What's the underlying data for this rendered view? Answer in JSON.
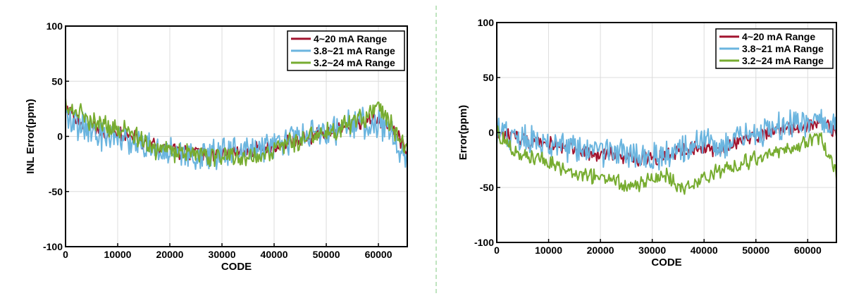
{
  "colors": {
    "series": [
      "#A2142F",
      "#6BB5DF",
      "#77AC30"
    ],
    "grid": "#dcdcdc",
    "divider": "#bfe4bf"
  },
  "chart_data": [
    {
      "type": "line",
      "title": "",
      "xlabel": "CODE",
      "ylabel": "INL Error(ppm)",
      "xlim": [
        0,
        65535
      ],
      "ylim": [
        -100,
        100
      ],
      "xticks": [
        0,
        10000,
        20000,
        30000,
        40000,
        50000,
        60000
      ],
      "yticks": [
        -100,
        -50,
        0,
        50,
        100
      ],
      "grid": true,
      "legend_position": "top-right",
      "series": [
        {
          "name": "4~20 mA Range",
          "x": [
            0,
            2500,
            5000,
            7500,
            10000,
            12500,
            15000,
            17500,
            20000,
            22500,
            25000,
            27500,
            30000,
            32500,
            35000,
            37500,
            40000,
            42500,
            45000,
            47500,
            50000,
            52500,
            55000,
            57500,
            60000,
            62500,
            65535
          ],
          "y": [
            26,
            13,
            8,
            4,
            2,
            0,
            -6,
            -10,
            -12,
            -14,
            -16,
            -17,
            -16,
            -15,
            -13,
            -12,
            -10,
            -6,
            -3,
            0,
            4,
            7,
            10,
            13,
            16,
            8,
            -15
          ],
          "amplitude": 6
        },
        {
          "name": "3.8~21 mA Range",
          "x": [
            0,
            2500,
            5000,
            7500,
            10000,
            12500,
            15000,
            17500,
            20000,
            22500,
            25000,
            27500,
            30000,
            32500,
            35000,
            37500,
            40000,
            42500,
            45000,
            47500,
            50000,
            52500,
            55000,
            57500,
            60000,
            62500,
            65535
          ],
          "y": [
            18,
            10,
            4,
            0,
            -1,
            -3,
            -8,
            -12,
            -13,
            -15,
            -16,
            -17,
            -15,
            -14,
            -12,
            -10,
            -8,
            -4,
            0,
            2,
            5,
            8,
            10,
            12,
            13,
            6,
            -25
          ],
          "amplitude": 12
        },
        {
          "name": "3.2~24 mA Range",
          "x": [
            0,
            2500,
            5000,
            7500,
            10000,
            12500,
            15000,
            17500,
            20000,
            22500,
            25000,
            27500,
            30000,
            32500,
            35000,
            37500,
            40000,
            42500,
            45000,
            47500,
            50000,
            52500,
            55000,
            57500,
            60000,
            62500,
            65535
          ],
          "y": [
            30,
            22,
            14,
            10,
            6,
            4,
            -6,
            -12,
            -13,
            -15,
            -17,
            -18,
            -16,
            -18,
            -22,
            -18,
            -12,
            -8,
            -4,
            0,
            4,
            8,
            12,
            18,
            28,
            10,
            -15
          ],
          "amplitude": 8
        }
      ]
    },
    {
      "type": "line",
      "title": "",
      "xlabel": "CODE",
      "ylabel": "Error(ppm)",
      "xlim": [
        0,
        65535
      ],
      "ylim": [
        -100,
        100
      ],
      "xticks": [
        0,
        10000,
        20000,
        30000,
        40000,
        50000,
        60000
      ],
      "yticks": [
        -100,
        -50,
        0,
        50,
        100
      ],
      "grid": true,
      "legend_position": "top-right",
      "series": [
        {
          "name": "4~20 mA Range",
          "x": [
            0,
            2500,
            5000,
            7500,
            10000,
            12500,
            15000,
            17500,
            20000,
            22500,
            25000,
            27500,
            30000,
            32500,
            35000,
            37500,
            40000,
            42500,
            45000,
            47500,
            50000,
            52500,
            55000,
            57500,
            60000,
            62500,
            65535
          ],
          "y": [
            0,
            -3,
            -6,
            -9,
            -11,
            -13,
            -16,
            -19,
            -20,
            -20,
            -22,
            -24,
            -25,
            -22,
            -18,
            -14,
            -14,
            -15,
            -12,
            -8,
            -4,
            -2,
            2,
            4,
            6,
            8,
            2
          ],
          "amplitude": 6
        },
        {
          "name": "3.8~21 mA Range",
          "x": [
            0,
            2500,
            5000,
            7500,
            10000,
            12500,
            15000,
            17500,
            20000,
            22500,
            25000,
            27500,
            30000,
            32500,
            35000,
            37500,
            40000,
            42500,
            45000,
            47500,
            50000,
            52500,
            55000,
            57500,
            60000,
            62500,
            65535
          ],
          "y": [
            2,
            -2,
            -5,
            -8,
            -10,
            -12,
            -14,
            -17,
            -18,
            -18,
            -20,
            -22,
            -22,
            -20,
            -16,
            -12,
            -10,
            -10,
            -8,
            -4,
            0,
            2,
            5,
            7,
            9,
            10,
            5
          ],
          "amplitude": 11
        },
        {
          "name": "3.2~24 mA Range",
          "x": [
            0,
            2500,
            5000,
            7500,
            10000,
            12500,
            15000,
            17500,
            20000,
            22500,
            25000,
            27500,
            30000,
            32500,
            35000,
            37500,
            40000,
            42500,
            45000,
            47500,
            50000,
            52500,
            55000,
            57500,
            60000,
            62500,
            65535
          ],
          "y": [
            2,
            -15,
            -20,
            -22,
            -26,
            -32,
            -38,
            -40,
            -40,
            -42,
            -50,
            -48,
            -42,
            -38,
            -50,
            -48,
            -42,
            -36,
            -32,
            -28,
            -24,
            -22,
            -18,
            -14,
            -8,
            -5,
            -38
          ],
          "amplitude": 6
        }
      ]
    }
  ]
}
